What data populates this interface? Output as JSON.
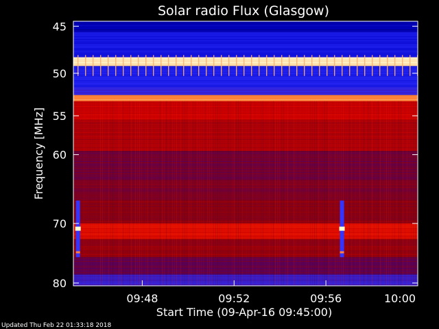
{
  "chart_data": {
    "type": "heatmap",
    "title": "Solar radio Flux (Glasgow)",
    "xlabel": "Start Time (09-Apr-16 09:45:00)",
    "ylabel": "Frequency [MHz]",
    "x_tick_labels": [
      "09:48",
      "09:52",
      "09:56",
      "10:00"
    ],
    "x_ticks_minutes": [
      48,
      52,
      56,
      60
    ],
    "xlim_minutes": [
      45,
      60
    ],
    "y_tick_values": [
      45,
      50,
      55,
      60,
      70,
      80
    ],
    "ylim": [
      44.5,
      80.5
    ],
    "y_scale": "log",
    "colormap": [
      "#000050",
      "#0000c8",
      "#3030ff",
      "#4a0070",
      "#8a0010",
      "#d00000",
      "#ff3000",
      "#ff9a4a",
      "#ffffd8"
    ],
    "bands": [
      {
        "from": 44.5,
        "to": 45.6,
        "intensity": 0.1
      },
      {
        "from": 45.6,
        "to": 48.2,
        "intensity": 0.18
      },
      {
        "from": 48.2,
        "to": 49.2,
        "intensity": 0.97
      },
      {
        "from": 49.2,
        "to": 51.6,
        "intensity": 0.2
      },
      {
        "from": 51.6,
        "to": 52.5,
        "intensity": 0.28
      },
      {
        "from": 52.5,
        "to": 53.2,
        "intensity": 0.85
      },
      {
        "from": 53.2,
        "to": 55.5,
        "intensity": 0.62
      },
      {
        "from": 55.5,
        "to": 59.5,
        "intensity": 0.56
      },
      {
        "from": 59.5,
        "to": 63.5,
        "intensity": 0.45
      },
      {
        "from": 63.5,
        "to": 66.5,
        "intensity": 0.47
      },
      {
        "from": 66.5,
        "to": 70.0,
        "intensity": 0.5
      },
      {
        "from": 70.0,
        "to": 72.5,
        "intensity": 0.66
      },
      {
        "from": 72.5,
        "to": 75.5,
        "intensity": 0.52
      },
      {
        "from": 75.5,
        "to": 78.5,
        "intensity": 0.42
      },
      {
        "from": 78.5,
        "to": 80.5,
        "intensity": 0.3
      }
    ],
    "bursts": [
      {
        "minute": 45.2,
        "from": 66.5,
        "to": 75.5
      },
      {
        "minute": 56.7,
        "from": 66.5,
        "to": 75.5
      }
    ],
    "footer": "Updated Thu Feb 22 01:33:18 2018"
  }
}
